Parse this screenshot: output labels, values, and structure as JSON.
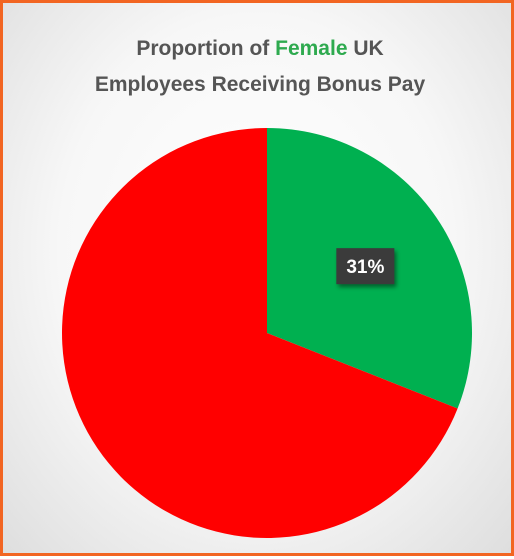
{
  "chart_data": {
    "type": "pie",
    "title_prefix": "Proportion of ",
    "title_highlight": "Female",
    "title_suffix_line1": " UK",
    "title_line2": "Employees Receiving Bonus Pay",
    "slices": [
      {
        "value": 31,
        "label": "31%",
        "color": "#00b050"
      },
      {
        "value": 69,
        "label": "",
        "color": "#ff0000"
      }
    ]
  },
  "colors": {
    "border": "#f26522",
    "title_highlight": "#2eaa4f",
    "data_label_bg": "#3a3a3a",
    "data_label_text": "#ffffff"
  }
}
